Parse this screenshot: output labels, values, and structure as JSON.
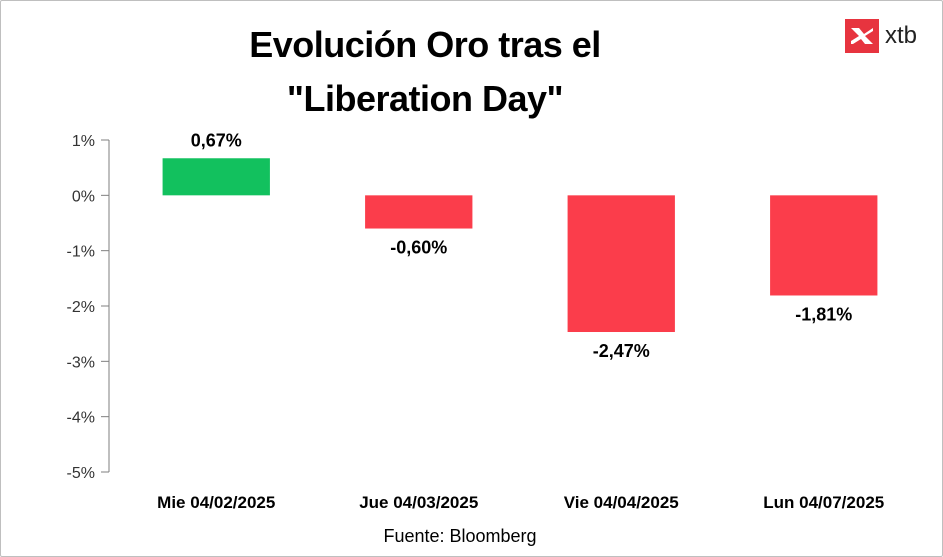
{
  "brand": {
    "name": "xtb",
    "accent": "#e7343f"
  },
  "title_lines": [
    "Evolución Oro tras el",
    "\"Liberation Day\""
  ],
  "source": "Fuente: Bloomberg",
  "chart_data": {
    "type": "bar",
    "title": "Evolución Oro tras el \"Liberation Day\"",
    "categories": [
      "Mie 04/02/2025",
      "Jue 04/03/2025",
      "Vie 04/04/2025",
      "Lun 04/07/2025"
    ],
    "values": [
      0.67,
      -0.6,
      -2.47,
      -1.81
    ],
    "data_labels": [
      "0,67%",
      "-0,60%",
      "-2,47%",
      "-1,81%"
    ],
    "ylim": [
      -5,
      1
    ],
    "yticks": [
      1,
      0,
      -1,
      -2,
      -3,
      -4,
      -5
    ],
    "ytick_labels": [
      "1%",
      "0%",
      "-1%",
      "-2%",
      "-3%",
      "-4%",
      "-5%"
    ],
    "colors": {
      "positive": "#12c15e",
      "negative": "#fb3d4b"
    },
    "grid": false,
    "xlabel": "",
    "ylabel": ""
  }
}
